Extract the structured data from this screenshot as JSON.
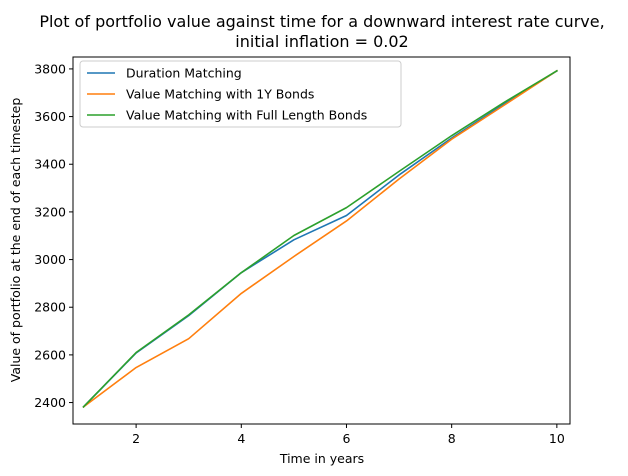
{
  "chart_data": {
    "type": "line",
    "title": "Plot of portfolio value against time for a downward interest rate curve,",
    "subtitle": "initial inflation = 0.02",
    "xlabel": "Time in years",
    "ylabel": "Value of portfolio at the end of each timestep",
    "xlim": [
      0.8,
      10.25
    ],
    "ylim": [
      2310,
      3850
    ],
    "xticks": [
      2,
      4,
      6,
      8,
      10
    ],
    "yticks": [
      2400,
      2600,
      2800,
      3000,
      3200,
      3400,
      3600,
      3800
    ],
    "grid": false,
    "legend_position": "top-left",
    "x": [
      1,
      2,
      3,
      4,
      5,
      6,
      7,
      8,
      9,
      10
    ],
    "series": [
      {
        "name": "Duration Matching",
        "color": "#1f77b4",
        "values": [
          2382,
          2608,
          2765,
          2945,
          3083,
          3185,
          3355,
          3510,
          3653,
          3792
        ]
      },
      {
        "name": "Value Matching with 1Y Bonds",
        "color": "#ff7f0e",
        "values": [
          2382,
          2547,
          2668,
          2858,
          3013,
          3162,
          3338,
          3505,
          3648,
          3792
        ]
      },
      {
        "name": "Value Matching with Full Length Bonds",
        "color": "#2ca02c",
        "values": [
          2382,
          2610,
          2768,
          2945,
          3101,
          3218,
          3370,
          3520,
          3660,
          3792
        ]
      }
    ]
  }
}
